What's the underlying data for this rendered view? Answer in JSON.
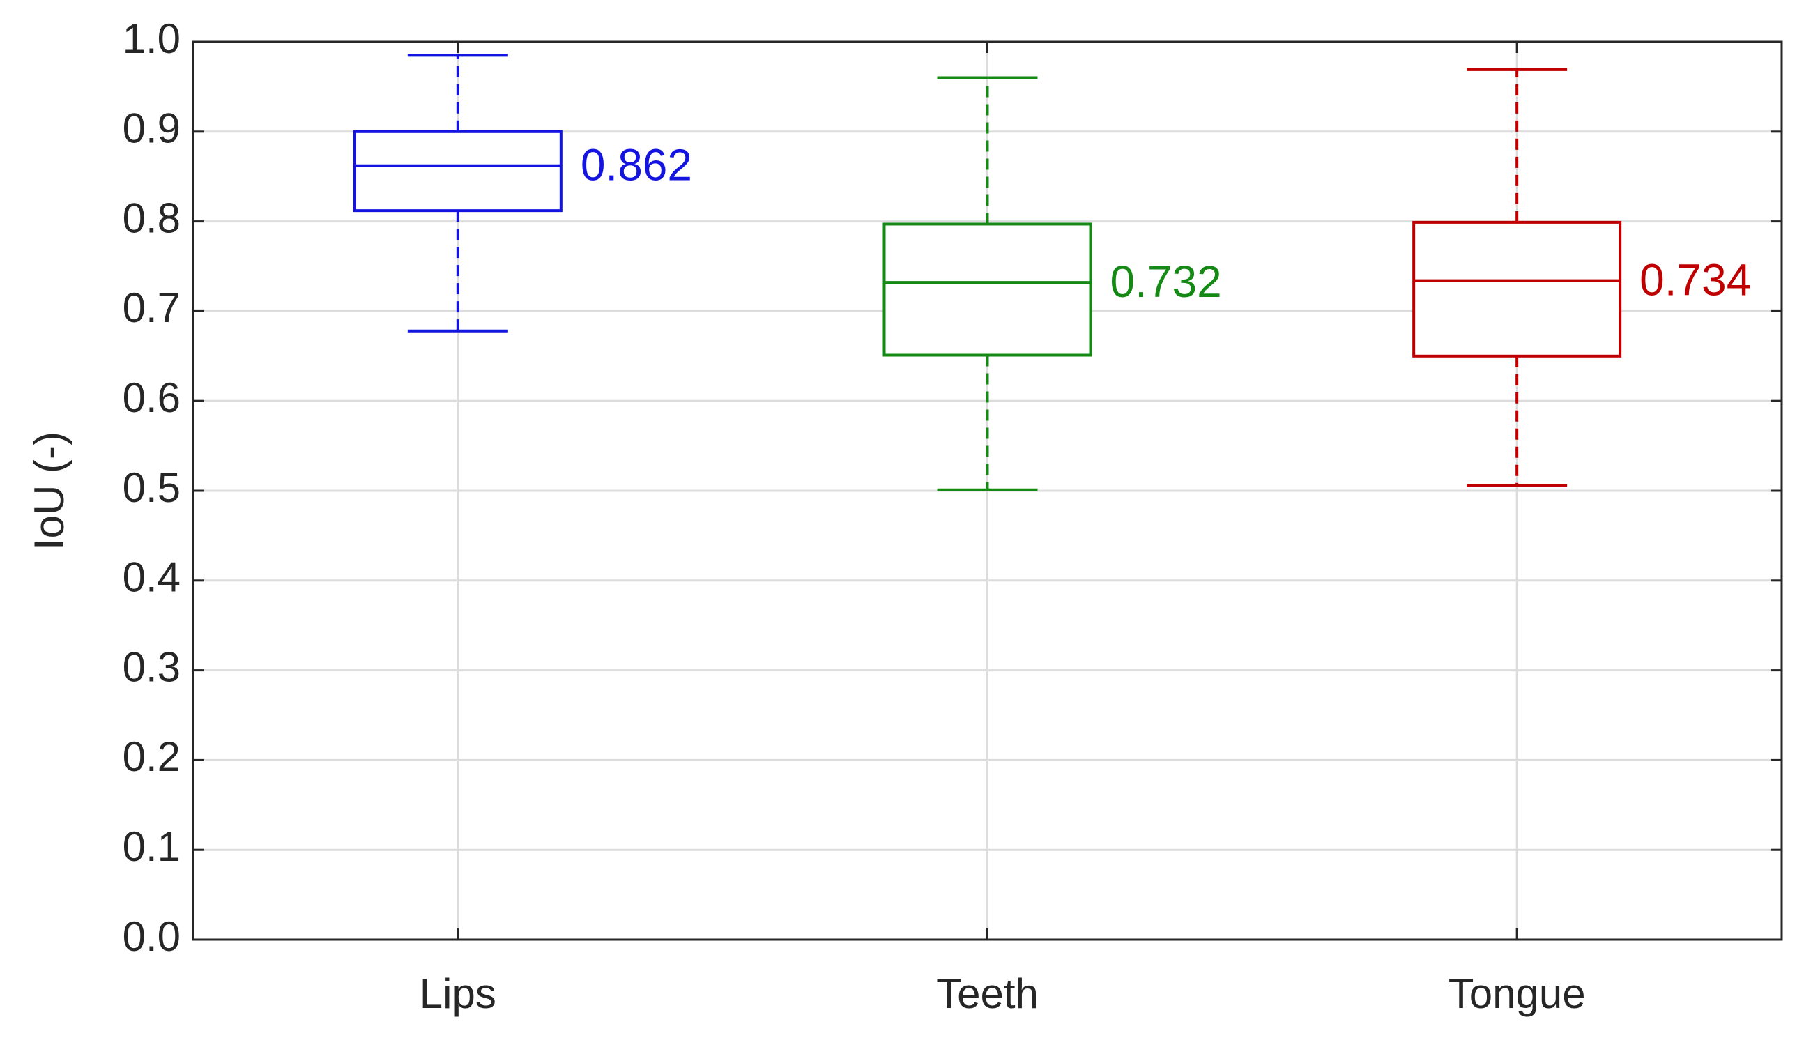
{
  "chart_data": {
    "type": "box",
    "ylabel": "IoU (-)",
    "categories": [
      "Lips",
      "Teeth",
      "Tongue"
    ],
    "colors": [
      "#1414e0",
      "#148a14",
      "#c00000"
    ],
    "boxes": [
      {
        "whislo": 0.678,
        "q1": 0.812,
        "med": 0.862,
        "q3": 0.9,
        "whishi": 0.985
      },
      {
        "whislo": 0.501,
        "q1": 0.651,
        "med": 0.732,
        "q3": 0.797,
        "whishi": 0.96
      },
      {
        "whislo": 0.506,
        "q1": 0.65,
        "med": 0.734,
        "q3": 0.799,
        "whishi": 0.969
      }
    ],
    "ylim": [
      0,
      1
    ],
    "yticks": [
      {
        "value": 0,
        "label": "0.0"
      },
      0.1,
      0.2,
      0.3,
      0.4,
      0.5,
      0.6,
      0.7,
      0.8,
      0.9,
      {
        "value": 1,
        "label": "1.0"
      }
    ],
    "grid": true
  }
}
